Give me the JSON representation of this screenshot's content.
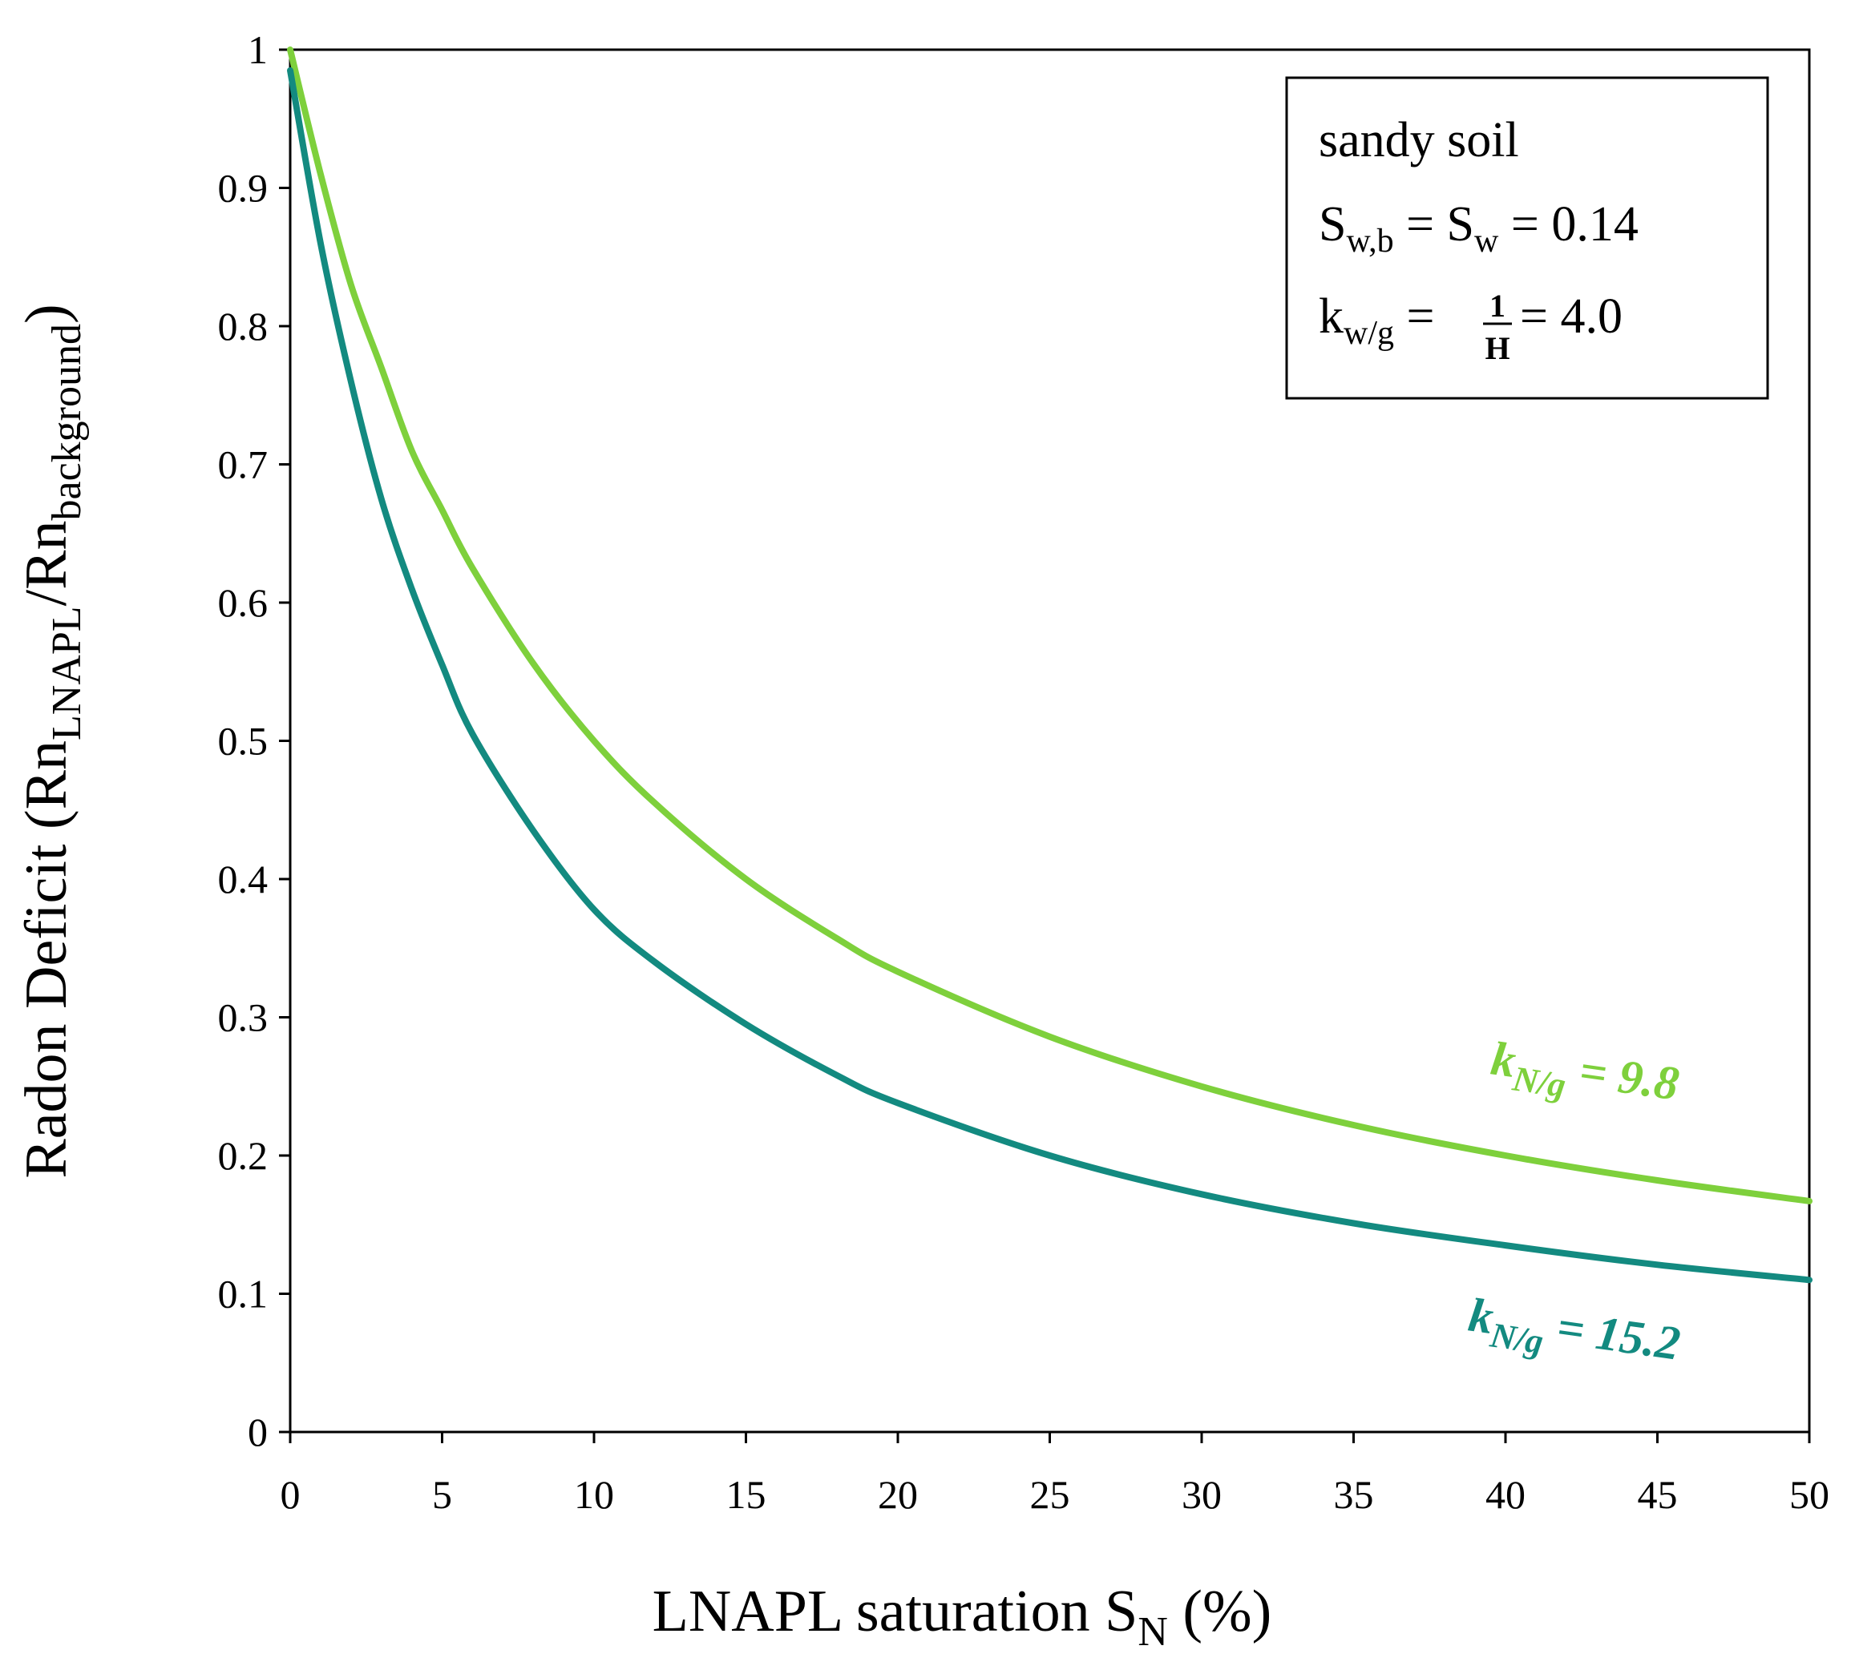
{
  "chart_data": {
    "type": "line",
    "title": "",
    "xlabel": {
      "main": "LNAPL saturation S",
      "sub": "N",
      "suffix": " (%)"
    },
    "ylabel": {
      "main": "Radon Deficit (Rn",
      "sub1": "LNAPL",
      "mid": "/Rn",
      "sub2": "background",
      "suffix": ")"
    },
    "xlim": [
      0,
      50
    ],
    "ylim": [
      0,
      1
    ],
    "xticks": [
      "0",
      "5",
      "10",
      "15",
      "20",
      "25",
      "30",
      "35",
      "40",
      "45",
      "50"
    ],
    "yticks": [
      "0",
      "0.1",
      "0.2",
      "0.3",
      "0.4",
      "0.5",
      "0.6",
      "0.7",
      "0.8",
      "0.9",
      "1"
    ],
    "grid": false,
    "legend": {
      "position": "top-right",
      "line1": "sandy soil",
      "line2": {
        "a": "S",
        "a_sub": "w,b",
        "eq1": " = S",
        "b_sub": "w",
        "eq2": " = 0.14"
      },
      "line3": {
        "a": "k",
        "a_sub": "w/g",
        "eq1": " = ",
        "num": "1",
        "den": "H",
        "eq2": " = 4.0"
      }
    },
    "series": [
      {
        "name": "kN/g = 9.8",
        "label": {
          "k": "k",
          "sub": "N/g",
          "value": " = 9.8"
        },
        "color": "#7ed03c",
        "x": [
          0,
          1,
          2,
          3,
          4,
          5,
          6,
          8,
          10,
          12,
          15,
          18,
          20,
          25,
          30,
          35,
          40,
          45,
          50
        ],
        "y": [
          1.0,
          0.91,
          0.83,
          0.77,
          0.71,
          0.667,
          0.625,
          0.556,
          0.5,
          0.455,
          0.4,
          0.357,
          0.333,
          0.286,
          0.25,
          0.222,
          0.2,
          0.182,
          0.167
        ]
      },
      {
        "name": "kN/g = 15.2",
        "label": {
          "k": "k",
          "sub": "N/g",
          "value": " = 15.2"
        },
        "color": "#138a80",
        "x": [
          0,
          1,
          2,
          3,
          4,
          5,
          6,
          8,
          10,
          12,
          15,
          18,
          20,
          25,
          30,
          35,
          40,
          45,
          50
        ],
        "y": [
          0.985,
          0.86,
          0.76,
          0.675,
          0.61,
          0.555,
          0.505,
          0.435,
          0.378,
          0.34,
          0.295,
          0.258,
          0.238,
          0.2,
          0.172,
          0.151,
          0.135,
          0.121,
          0.11
        ]
      }
    ]
  }
}
